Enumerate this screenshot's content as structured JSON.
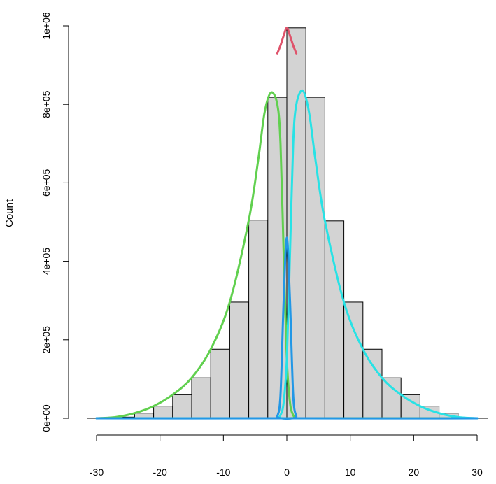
{
  "chart_data": {
    "type": "bar",
    "title": "",
    "xlabel": "",
    "ylabel": "Count",
    "xlim": [
      -30,
      30
    ],
    "ylim": [
      0,
      1000000
    ],
    "x_ticks": [
      -30,
      -20,
      -10,
      0,
      10,
      20,
      30
    ],
    "x_tick_labels": [
      "-30",
      "-20",
      "-10",
      "0",
      "10",
      "20",
      "30"
    ],
    "y_ticks": [
      0,
      200000,
      400000,
      600000,
      800000,
      1000000
    ],
    "y_tick_labels": [
      "0e+00",
      "2e+05",
      "4e+05",
      "6e+05",
      "8e+05",
      "1e+06"
    ],
    "grid": false,
    "bin_edges": [
      -27,
      -24,
      -21,
      -18,
      -15,
      -12,
      -9,
      -6,
      -3,
      0,
      3,
      6,
      9,
      12,
      15,
      18,
      21,
      24,
      27
    ],
    "counts": [
      3000,
      13000,
      31000,
      60000,
      103000,
      176000,
      296000,
      505000,
      818000,
      995000,
      818000,
      503000,
      296000,
      176000,
      103000,
      60000,
      31000,
      13000
    ],
    "bar_fill": "#d3d3d3",
    "bar_stroke": "#000000",
    "curves": [
      {
        "color": "#df536b",
        "points": [
          [
            -1.5,
            930000
          ],
          [
            -1.0,
            950000
          ],
          [
            -0.5,
            975000
          ],
          [
            0,
            995000
          ],
          [
            0.5,
            975000
          ],
          [
            1.0,
            950000
          ],
          [
            1.5,
            930000
          ]
        ]
      },
      {
        "color": "#61d04f",
        "points": [
          [
            -30,
            0
          ],
          [
            -27,
            3000
          ],
          [
            -24,
            13000
          ],
          [
            -21,
            31000
          ],
          [
            -18,
            60000
          ],
          [
            -15,
            103000
          ],
          [
            -12,
            176000
          ],
          [
            -9,
            296000
          ],
          [
            -6,
            505000
          ],
          [
            -4.5,
            660000
          ],
          [
            -3.5,
            780000
          ],
          [
            -2.5,
            830000
          ],
          [
            -1.5,
            800000
          ],
          [
            -1,
            700000
          ],
          [
            -0.5,
            420000
          ],
          [
            0,
            150000
          ],
          [
            0.5,
            40000
          ],
          [
            1,
            8000
          ],
          [
            1.5,
            1000
          ],
          [
            2,
            0
          ],
          [
            30,
            0
          ]
        ]
      },
      {
        "color": "#28e2e5",
        "points": [
          [
            -30,
            0
          ],
          [
            -2,
            0
          ],
          [
            -1.5,
            1000
          ],
          [
            -1,
            8000
          ],
          [
            -0.5,
            40000
          ],
          [
            0,
            150000
          ],
          [
            0.5,
            420000
          ],
          [
            1,
            700000
          ],
          [
            1.5,
            800000
          ],
          [
            2.5,
            835000
          ],
          [
            3.5,
            780000
          ],
          [
            4.5,
            660000
          ],
          [
            6,
            503000
          ],
          [
            9,
            296000
          ],
          [
            12,
            176000
          ],
          [
            15,
            103000
          ],
          [
            18,
            60000
          ],
          [
            21,
            31000
          ],
          [
            24,
            13000
          ],
          [
            27,
            3000
          ],
          [
            30,
            0
          ]
        ]
      },
      {
        "color": "#2297e6",
        "points": [
          [
            -30,
            0
          ],
          [
            -2,
            0
          ],
          [
            -1.5,
            5000
          ],
          [
            -1,
            60000
          ],
          [
            -0.5,
            300000
          ],
          [
            0,
            460000
          ],
          [
            0.5,
            300000
          ],
          [
            1,
            60000
          ],
          [
            1.5,
            5000
          ],
          [
            2,
            0
          ],
          [
            30,
            0
          ]
        ]
      }
    ]
  }
}
